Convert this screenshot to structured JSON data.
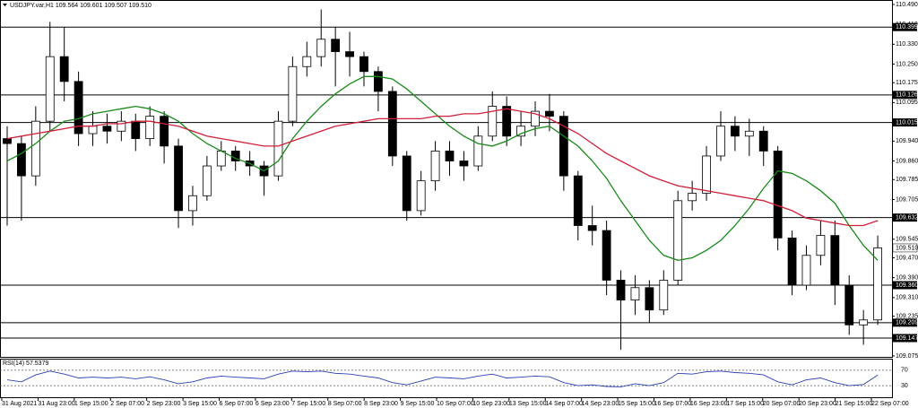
{
  "chart_data": {
    "type": "candlestick",
    "title": "USDJPY.var,H1  109.564 109.601 109.507 109.510",
    "ylim": [
      109.064,
      110.508
    ],
    "yticks": [
      {
        "value": 110.49,
        "label": "110.490"
      },
      {
        "value": 110.41,
        "label": "110.410"
      },
      {
        "value": 110.33,
        "label": "110.330"
      },
      {
        "value": 110.25,
        "label": "110.250"
      },
      {
        "value": 110.175,
        "label": "110.175"
      },
      {
        "value": 110.095,
        "label": "110.095"
      },
      {
        "value": 109.94,
        "label": "109.940"
      },
      {
        "value": 109.86,
        "label": "109.860"
      },
      {
        "value": 109.785,
        "label": "109.785"
      },
      {
        "value": 109.705,
        "label": "109.705"
      },
      {
        "value": 109.545,
        "label": "109.545"
      },
      {
        "value": 109.47,
        "label": "109.470"
      },
      {
        "value": 109.39,
        "label": "109.390"
      },
      {
        "value": 109.31,
        "label": "109.310"
      },
      {
        "value": 109.235,
        "label": "109.235"
      },
      {
        "value": 109.075,
        "label": "109.075"
      }
    ],
    "levels": [
      {
        "value": 110.399,
        "label": "110.399"
      },
      {
        "value": 110.126,
        "label": "110.126"
      },
      {
        "value": 110.015,
        "label": "110.015"
      },
      {
        "value": 109.632,
        "label": "109.632"
      },
      {
        "value": 109.36,
        "label": "109.360"
      },
      {
        "value": 109.209,
        "label": "109.209"
      },
      {
        "value": 109.147,
        "label": "109.147"
      }
    ],
    "current_price": {
      "value": 109.51,
      "label": "109.510"
    },
    "xticks": [
      "31 Aug 2021",
      "31 Aug 23:00",
      "1 Sep 15:00",
      "2 Sep 07:00",
      "2 Sep 23:00",
      "3 Sep 15:00",
      "6 Sep 07:00",
      "6 Sep 23:00",
      "7 Sep 15:00",
      "8 Sep 07:00",
      "8 Sep 23:00",
      "9 Sep 15:00",
      "10 Sep 07:00",
      "10 Sep 23:00",
      "13 Sep 15:00",
      "14 Sep 07:00",
      "14 Sep 23:00",
      "15 Sep 15:00",
      "16 Sep 07:00",
      "16 Sep 23:00",
      "17 Sep 15:00",
      "20 Sep 07:00",
      "20 Sep 23:00",
      "21 Sep 15:00",
      "22 Sep 07:00"
    ],
    "open": [
      109.95,
      109.93,
      109.8,
      110.02,
      110.28,
      110.18,
      109.97,
      110.0,
      109.98,
      110.02,
      109.95,
      110.04,
      109.92,
      109.66,
      109.72,
      109.84,
      109.9,
      109.86,
      109.84,
      109.8,
      110.02,
      110.24,
      110.28,
      110.35,
      110.3,
      110.28,
      110.22,
      110.14,
      109.88,
      109.66,
      109.78,
      109.9,
      109.86,
      109.84,
      109.96,
      110.08,
      109.96,
      110.0,
      110.06,
      110.04,
      109.8,
      109.6,
      109.58,
      109.38,
      109.3,
      109.35,
      109.26,
      109.38,
      109.7,
      109.73,
      109.88,
      110.0,
      109.96,
      109.98,
      109.9,
      109.55,
      109.36,
      109.48,
      109.56,
      109.36,
      109.2,
      109.22
    ],
    "high": [
      110.0,
      109.96,
      110.08,
      110.42,
      110.4,
      110.22,
      110.06,
      110.05,
      110.06,
      110.05,
      110.08,
      110.06,
      109.95,
      109.76,
      109.88,
      109.94,
      109.92,
      109.9,
      109.86,
      110.06,
      110.28,
      110.34,
      110.47,
      110.4,
      110.38,
      110.3,
      110.24,
      110.16,
      109.9,
      109.82,
      109.94,
      109.94,
      109.9,
      110.0,
      110.14,
      110.12,
      110.06,
      110.1,
      110.13,
      110.06,
      109.82,
      109.68,
      109.62,
      109.42,
      109.4,
      109.38,
      109.42,
      109.74,
      109.78,
      109.92,
      110.06,
      110.04,
      110.03,
      110.0,
      109.92,
      109.58,
      109.52,
      109.62,
      109.62,
      109.4,
      109.26,
      109.56
    ],
    "low": [
      109.6,
      109.62,
      109.76,
      109.98,
      110.1,
      109.92,
      109.92,
      109.93,
      109.94,
      109.9,
      109.92,
      109.85,
      109.59,
      109.6,
      109.7,
      109.82,
      109.82,
      109.8,
      109.72,
      109.78,
      110.0,
      110.2,
      110.24,
      110.16,
      110.2,
      110.16,
      110.06,
      109.84,
      109.62,
      109.64,
      109.74,
      109.8,
      109.78,
      109.82,
      109.94,
      109.92,
      109.92,
      109.96,
      109.98,
      109.74,
      109.54,
      109.52,
      109.32,
      109.1,
      109.24,
      109.21,
      109.24,
      109.36,
      109.66,
      109.7,
      109.86,
      109.9,
      109.88,
      109.84,
      109.5,
      109.32,
      109.34,
      109.44,
      109.28,
      109.16,
      109.12,
      109.2
    ],
    "close": [
      109.93,
      109.8,
      110.02,
      110.28,
      110.18,
      109.97,
      110.0,
      109.98,
      110.02,
      109.95,
      110.04,
      109.92,
      109.66,
      109.72,
      109.84,
      109.9,
      109.86,
      109.84,
      109.8,
      110.02,
      110.24,
      110.28,
      110.35,
      110.3,
      110.28,
      110.22,
      110.14,
      109.88,
      109.66,
      109.78,
      109.9,
      109.86,
      109.84,
      109.96,
      110.08,
      109.96,
      110.0,
      110.06,
      110.04,
      109.8,
      109.6,
      109.58,
      109.38,
      109.3,
      109.35,
      109.26,
      109.38,
      109.7,
      109.73,
      109.88,
      110.0,
      109.96,
      109.98,
      109.9,
      109.55,
      109.36,
      109.48,
      109.56,
      109.36,
      109.2,
      109.22,
      109.51
    ],
    "ma_lines": [
      {
        "color": "#1a8a1a",
        "values": [
          109.86,
          109.89,
          109.93,
          109.98,
          110.02,
          110.03,
          110.05,
          110.06,
          110.07,
          110.08,
          110.07,
          110.05,
          110.02,
          109.97,
          109.93,
          109.9,
          109.87,
          109.85,
          109.82,
          109.86,
          109.95,
          110.02,
          110.08,
          110.13,
          110.17,
          110.2,
          110.2,
          110.19,
          110.15,
          110.1,
          110.05,
          110.0,
          109.96,
          109.93,
          109.92,
          109.94,
          109.97,
          109.99,
          110.0,
          109.96,
          109.92,
          109.86,
          109.79,
          109.7,
          109.62,
          109.54,
          109.48,
          109.46,
          109.47,
          109.5,
          109.54,
          109.6,
          109.67,
          109.75,
          109.82,
          109.81,
          109.78,
          109.74,
          109.69,
          109.6,
          109.52,
          109.46
        ]
      },
      {
        "color": "#d0203a",
        "values": [
          109.95,
          109.96,
          109.97,
          109.98,
          109.99,
          110.0,
          110.0,
          110.01,
          110.01,
          110.02,
          110.02,
          110.01,
          110.0,
          109.98,
          109.96,
          109.95,
          109.94,
          109.93,
          109.92,
          109.92,
          109.94,
          109.96,
          109.98,
          110.0,
          110.01,
          110.02,
          110.03,
          110.03,
          110.03,
          110.03,
          110.04,
          110.04,
          110.05,
          110.05,
          110.06,
          110.07,
          110.06,
          110.05,
          110.03,
          110.0,
          109.97,
          109.93,
          109.89,
          109.86,
          109.83,
          109.8,
          109.78,
          109.76,
          109.75,
          109.74,
          109.73,
          109.72,
          109.71,
          109.7,
          109.68,
          109.66,
          109.63,
          109.62,
          109.61,
          109.6,
          109.6,
          109.62
        ]
      }
    ],
    "rsi": {
      "label": "RSI(14) 57.5379",
      "color": "#2b3fb0",
      "ylim": [
        0,
        100
      ],
      "yticks": [
        70,
        30
      ],
      "values": [
        45,
        40,
        58,
        68,
        60,
        50,
        52,
        50,
        52,
        48,
        53,
        45,
        35,
        40,
        50,
        55,
        52,
        50,
        48,
        60,
        68,
        66,
        68,
        62,
        60,
        55,
        50,
        38,
        32,
        42,
        52,
        50,
        48,
        55,
        60,
        50,
        52,
        55,
        53,
        38,
        30,
        32,
        28,
        27,
        35,
        30,
        38,
        62,
        60,
        66,
        68,
        64,
        62,
        58,
        40,
        32,
        45,
        50,
        38,
        30,
        33,
        57.5379
      ]
    }
  }
}
